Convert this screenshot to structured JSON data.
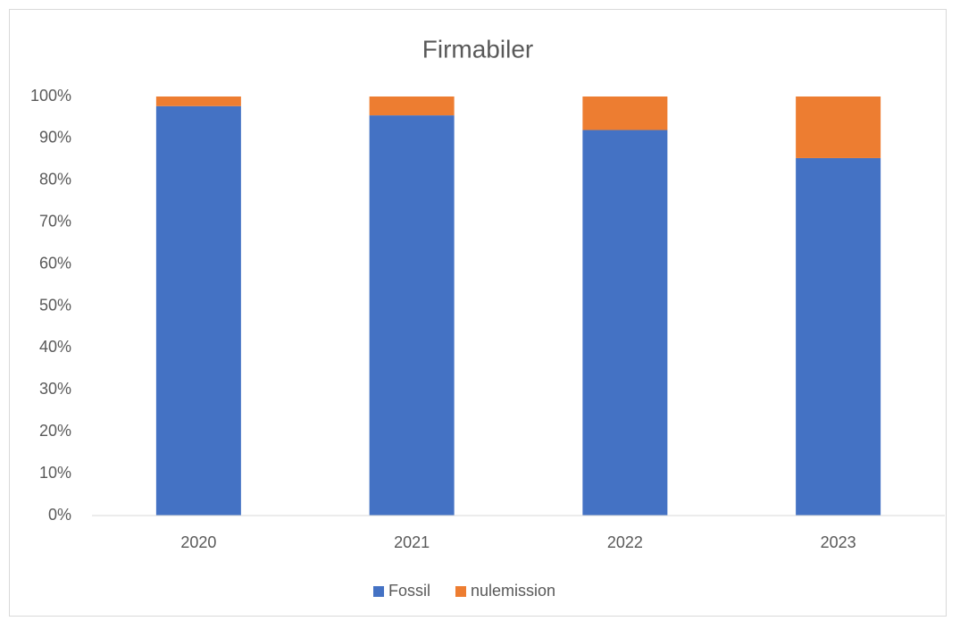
{
  "chart_data": {
    "type": "stacked_bar",
    "title": "Firmabiler",
    "categories": [
      "2020",
      "2021",
      "2022",
      "2023"
    ],
    "series": [
      {
        "name": "Fossil",
        "color": "#4472c4",
        "values": [
          97.7,
          95.5,
          92,
          85.3
        ]
      },
      {
        "name": "nulemission",
        "color": "#ed7d31",
        "values": [
          2.3,
          4.5,
          8,
          14.7
        ]
      }
    ],
    "ylim": [
      0,
      100
    ],
    "yticks": [
      {
        "value": 0,
        "label": "0%"
      },
      {
        "value": 10,
        "label": "10%"
      },
      {
        "value": 20,
        "label": "20%"
      },
      {
        "value": 30,
        "label": "30%"
      },
      {
        "value": 40,
        "label": "40%"
      },
      {
        "value": 50,
        "label": "50%"
      },
      {
        "value": 60,
        "label": "60%"
      },
      {
        "value": 70,
        "label": "70%"
      },
      {
        "value": 80,
        "label": "80%"
      },
      {
        "value": 90,
        "label": "90%"
      },
      {
        "value": 100,
        "label": "100%"
      }
    ],
    "grid": false,
    "legend": "bottom"
  }
}
